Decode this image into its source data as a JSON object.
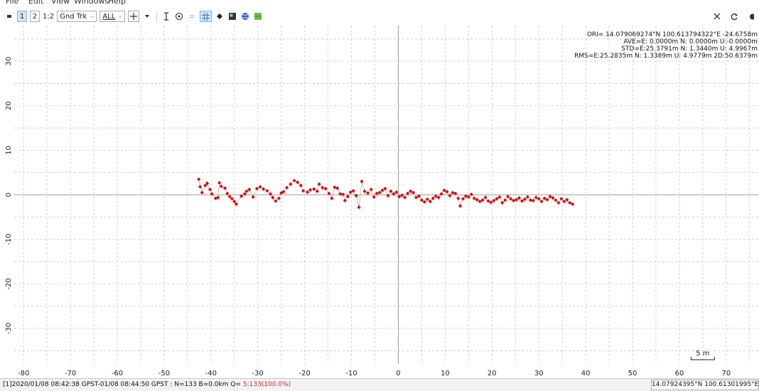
{
  "menu": [
    "File",
    "Edit",
    "View",
    "Windows",
    "Help"
  ],
  "toolbar": {
    "btn_1": "1",
    "btn_2": "2",
    "btn_12": "1:2",
    "plot_type": "Gnd Trk",
    "quality": "ALL"
  },
  "stats": {
    "ori": "ORI= 14.079069274°N  100.613794322°E -24.6758m",
    "ave": "AVE=E: 0.0000m N: 0.0000m U:-0.0000m",
    "std": "STD=E:25.3791m N: 1.3440m U: 4.9967m",
    "rms": "RMS=E:25.2835m N: 1.3389m U: 4.9779m 2D:50.6379m"
  },
  "scale_label": "5 m",
  "status": {
    "left": "[1]2020/01/08 08:42:38 GPST-01/08 08:44:50 GPST : N=133 B=0.0km Q= ",
    "q_value": "5:133(100.0%)",
    "right": "14.07924395°N  100.61301995°E"
  },
  "colors": {
    "points": "#e00000",
    "track": "#b0b0b0",
    "grid": "#c8c8c8",
    "axis": "#9a9a9a"
  },
  "chart_data": {
    "type": "scatter",
    "xlim": [
      -82,
      77
    ],
    "ylim": [
      -38,
      38
    ],
    "x_ticks": [
      -80,
      -70,
      -60,
      -50,
      -40,
      -30,
      -20,
      -10,
      0,
      10,
      20,
      30,
      40,
      50,
      60,
      70
    ],
    "y_ticks": [
      30,
      20,
      10,
      0,
      -10,
      -20,
      -30
    ],
    "grid": true,
    "series": [
      {
        "points": [
          [
            -42.3,
            1.8
          ],
          [
            -42.6,
            3.5
          ],
          [
            -41.9,
            0.5
          ],
          [
            -41.2,
            2.1
          ],
          [
            -40.8,
            2.6
          ],
          [
            -40.2,
            1.2
          ],
          [
            -39.8,
            0.2
          ],
          [
            -39.0,
            -0.8
          ],
          [
            -38.5,
            -0.6
          ],
          [
            -38.2,
            2.7
          ],
          [
            -37.8,
            1.9
          ],
          [
            -37.0,
            1.5
          ],
          [
            -36.5,
            0.3
          ],
          [
            -36.0,
            -0.4
          ],
          [
            -35.5,
            -0.9
          ],
          [
            -35.0,
            -1.5
          ],
          [
            -34.6,
            -2.1
          ],
          [
            -33.5,
            -0.3
          ],
          [
            -32.8,
            0.2
          ],
          [
            -32.4,
            0.8
          ],
          [
            -31.8,
            1.2
          ],
          [
            -31.0,
            -0.5
          ],
          [
            -30.2,
            1.4
          ],
          [
            -29.5,
            1.8
          ],
          [
            -28.8,
            1.3
          ],
          [
            -28.0,
            0.9
          ],
          [
            -27.3,
            0.2
          ],
          [
            -26.8,
            -0.6
          ],
          [
            -26.2,
            -1.4
          ],
          [
            -25.5,
            -0.8
          ],
          [
            -25.0,
            0.4
          ],
          [
            -24.5,
            0.7
          ],
          [
            -23.8,
            1.6
          ],
          [
            -23.0,
            2.4
          ],
          [
            -22.2,
            3.2
          ],
          [
            -21.5,
            2.8
          ],
          [
            -20.8,
            2.1
          ],
          [
            -20.3,
            0.9
          ],
          [
            -19.4,
            0.6
          ],
          [
            -18.8,
            1.1
          ],
          [
            -18.0,
            1.3
          ],
          [
            -17.3,
            0.8
          ],
          [
            -16.9,
            2.4
          ],
          [
            -16.2,
            1.6
          ],
          [
            -15.5,
            1.4
          ],
          [
            -14.8,
            0.3
          ],
          [
            -14.2,
            -0.8
          ],
          [
            -13.6,
            1.7
          ],
          [
            -13.0,
            1.5
          ],
          [
            -12.4,
            0.2
          ],
          [
            -11.8,
            0.1
          ],
          [
            -11.4,
            -1.3
          ],
          [
            -10.8,
            -0.4
          ],
          [
            -10.2,
            0.6
          ],
          [
            -9.6,
            0.9
          ],
          [
            -9.0,
            -0.2
          ],
          [
            -8.4,
            -2.8
          ],
          [
            -7.8,
            3.0
          ],
          [
            -7.2,
            0.8
          ],
          [
            -6.5,
            0.4
          ],
          [
            -5.8,
            1.2
          ],
          [
            -5.2,
            -0.5
          ],
          [
            -4.6,
            0.3
          ],
          [
            -4.0,
            0.5
          ],
          [
            -3.4,
            1.0
          ],
          [
            -2.8,
            1.4
          ],
          [
            -2.2,
            -0.2
          ],
          [
            -1.6,
            0.8
          ],
          [
            -1.0,
            0.2
          ],
          [
            -0.4,
            0.6
          ],
          [
            0.2,
            -0.4
          ],
          [
            0.8,
            -0.1
          ],
          [
            1.4,
            -0.6
          ],
          [
            2.0,
            0.3
          ],
          [
            2.6,
            0.8
          ],
          [
            3.2,
            0.5
          ],
          [
            3.8,
            -0.6
          ],
          [
            4.4,
            -0.3
          ],
          [
            5.0,
            -1.2
          ],
          [
            5.6,
            -1.6
          ],
          [
            6.2,
            -1.0
          ],
          [
            6.8,
            -1.5
          ],
          [
            7.4,
            -0.8
          ],
          [
            8.0,
            -0.3
          ],
          [
            8.6,
            -0.6
          ],
          [
            9.2,
            0.2
          ],
          [
            9.8,
            1.0
          ],
          [
            10.4,
            0.7
          ],
          [
            11.0,
            -0.2
          ],
          [
            11.6,
            0.5
          ],
          [
            12.2,
            0.3
          ],
          [
            12.8,
            -0.8
          ],
          [
            13.2,
            -2.5
          ],
          [
            13.8,
            -0.9
          ],
          [
            14.4,
            -0.3
          ],
          [
            15.0,
            -0.5
          ],
          [
            15.6,
            0.1
          ],
          [
            16.2,
            -0.8
          ],
          [
            16.8,
            -1.1
          ],
          [
            17.4,
            -1.5
          ],
          [
            18.0,
            -1.2
          ],
          [
            18.6,
            -0.6
          ],
          [
            19.2,
            -1.4
          ],
          [
            19.8,
            -1.7
          ],
          [
            20.4,
            -1.3
          ],
          [
            21.0,
            -0.9
          ],
          [
            21.6,
            -0.5
          ],
          [
            22.2,
            -1.8
          ],
          [
            22.8,
            -1.2
          ],
          [
            23.4,
            -0.4
          ],
          [
            24.0,
            -0.9
          ],
          [
            24.6,
            -1.3
          ],
          [
            25.2,
            -1.1
          ],
          [
            25.8,
            -0.7
          ],
          [
            26.4,
            -1.4
          ],
          [
            27.0,
            -1.0
          ],
          [
            27.6,
            -0.5
          ],
          [
            28.2,
            -1.2
          ],
          [
            28.8,
            -1.3
          ],
          [
            29.4,
            -0.6
          ],
          [
            30.0,
            -0.9
          ],
          [
            30.6,
            -1.5
          ],
          [
            31.2,
            -0.8
          ],
          [
            31.8,
            -1.1
          ],
          [
            32.4,
            -0.4
          ],
          [
            33.0,
            -0.7
          ],
          [
            33.6,
            -1.2
          ],
          [
            34.2,
            -1.8
          ],
          [
            34.8,
            -0.9
          ],
          [
            35.4,
            -1.5
          ],
          [
            36.0,
            -1.1
          ],
          [
            36.6,
            -1.8
          ],
          [
            37.2,
            -2.1
          ]
        ]
      }
    ]
  }
}
